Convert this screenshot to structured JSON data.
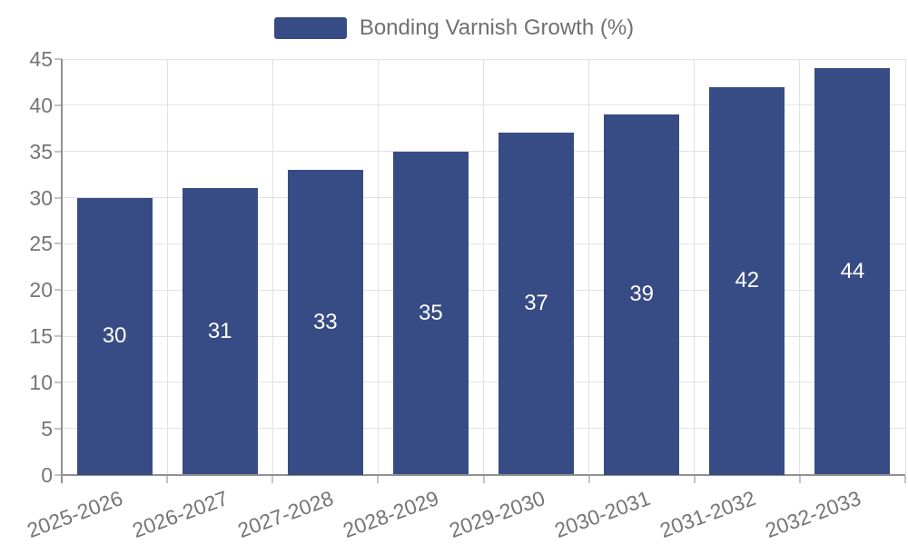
{
  "chart_data": {
    "type": "bar",
    "title": "",
    "legend": "Bonding Varnish Growth (%)",
    "legend_position": "top-center",
    "categories": [
      "2025-2026",
      "2026-2027",
      "2027-2028",
      "2028-2029",
      "2029-2030",
      "2030-2031",
      "2031-2032",
      "2032-2033"
    ],
    "values": [
      30,
      31,
      33,
      35,
      37,
      39,
      42,
      44
    ],
    "xlabel": "",
    "ylabel": "",
    "ylim": [
      0,
      45
    ],
    "y_ticks": [
      0,
      5,
      10,
      15,
      20,
      25,
      30,
      35,
      40,
      45
    ],
    "grid": true,
    "x_label_rotation_deg": -20,
    "colors": {
      "bar": "#374c84",
      "bar_value_text": "#ffffff",
      "axis_text": "#757575",
      "legend_text": "#707070",
      "gridline": "#e2e2e2",
      "axis_line": "#919191",
      "tick_mark": "#c4c4c4",
      "background": "#ffffff"
    }
  }
}
